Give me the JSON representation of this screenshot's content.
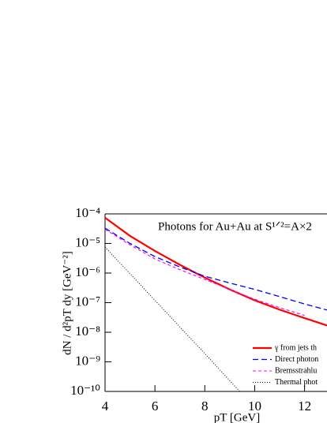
{
  "chart_data": {
    "type": "line",
    "title": "Photons for Au+Au at S¹ᐟ²=A×2",
    "x_label": "pT [GeV]",
    "y_label": "dN / d²pT dy [GeV⁻²]",
    "log_y": true,
    "legend": "lower right",
    "xlim": [
      4,
      12.9
    ],
    "xticks": [
      4,
      6,
      8,
      10,
      12
    ],
    "ylim": [
      1e-10,
      0.0001
    ],
    "yticks": [
      {
        "value": 0.0001,
        "label": "10⁻⁴"
      },
      {
        "value": 1e-05,
        "label": "10⁻⁵"
      },
      {
        "value": 1e-06,
        "label": "10⁻⁶"
      },
      {
        "value": 1e-07,
        "label": "10⁻⁷"
      },
      {
        "value": 1e-08,
        "label": "10⁻⁸"
      },
      {
        "value": 1e-09,
        "label": "10⁻⁹"
      },
      {
        "value": 1e-10,
        "label": "10⁻¹⁰"
      }
    ],
    "series": [
      {
        "name": "γ from jets th",
        "color": "#ff0000",
        "dash": "none",
        "width": 2.2,
        "x": [
          4,
          5,
          6,
          7,
          8,
          9,
          10,
          11,
          12,
          12.9
        ],
        "values": [
          7.4e-05,
          1.8e-05,
          5.6e-06,
          1.9e-06,
          7e-07,
          2.8e-07,
          1.2e-07,
          5.8e-08,
          3e-08,
          1.7e-08
        ]
      },
      {
        "name": "Direct photon",
        "color": "#0000ff",
        "dash": "7,4",
        "width": 1.3,
        "x": [
          4,
          5,
          6,
          7,
          8,
          9,
          10,
          11,
          12,
          12.9
        ],
        "values": [
          3.3e-05,
          1e-05,
          3.6e-06,
          1.6e-06,
          7.8e-07,
          4.6e-07,
          2.8e-07,
          1.6e-07,
          9e-08,
          5.6e-08
        ]
      },
      {
        "name": "Bremsstrahlu",
        "color": "#ff00ff",
        "dash": "4,3",
        "width": 1.1,
        "x": [
          4,
          5,
          6,
          7,
          8,
          9,
          10,
          11,
          12
        ],
        "values": [
          3e-05,
          9e-06,
          3e-06,
          1.3e-06,
          6.1e-07,
          2.8e-07,
          1.3e-07,
          6.8e-08,
          3.7e-08
        ]
      },
      {
        "name": "Thermal phot",
        "color": "#000000",
        "dash": "1,2",
        "width": 1,
        "x": [
          4,
          6,
          8,
          9.4
        ],
        "values": [
          7.6e-06,
          1.2e-07,
          1.9e-09,
          1e-10
        ]
      }
    ]
  }
}
